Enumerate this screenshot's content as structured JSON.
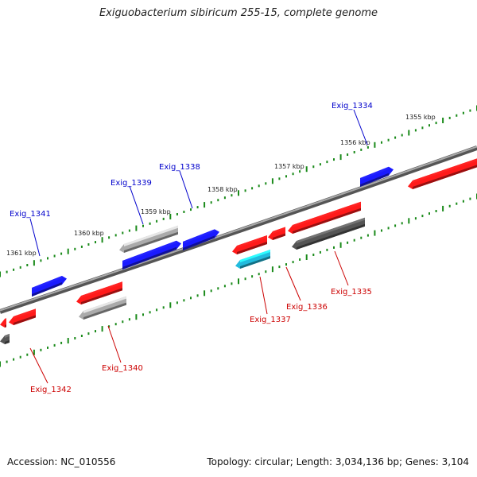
{
  "title": "Exiguobacterium sibiricum 255-15, complete genome",
  "footer": {
    "accession": "Accession: NC_010556",
    "summary": "Topology: circular; Length: 3,034,136 bp; Genes: 3,104"
  },
  "colors": {
    "forward_gene": "#1a1aff",
    "reverse_gene": "#ff1a1a",
    "gray_gene": "#aaaaaa",
    "dark_gene": "#555555",
    "rna_gene": "#22bbdd",
    "backbone": "#777777",
    "tick": "#1a8a1a",
    "forward_label": "#0000cc",
    "reverse_label": "#cc0000"
  },
  "scale_labels": [
    "1355 kbp",
    "1356 kbp",
    "1357 kbp",
    "1358 kbp",
    "1359 kbp",
    "1360 kbp",
    "1361 kbp"
  ],
  "forward_labels": [
    "Exig_1334",
    "Exig_1338",
    "Exig_1339",
    "Exig_1341"
  ],
  "reverse_labels": [
    "Exig_1335",
    "Exig_1336",
    "Exig_1337",
    "Exig_1340",
    "Exig_1342"
  ]
}
